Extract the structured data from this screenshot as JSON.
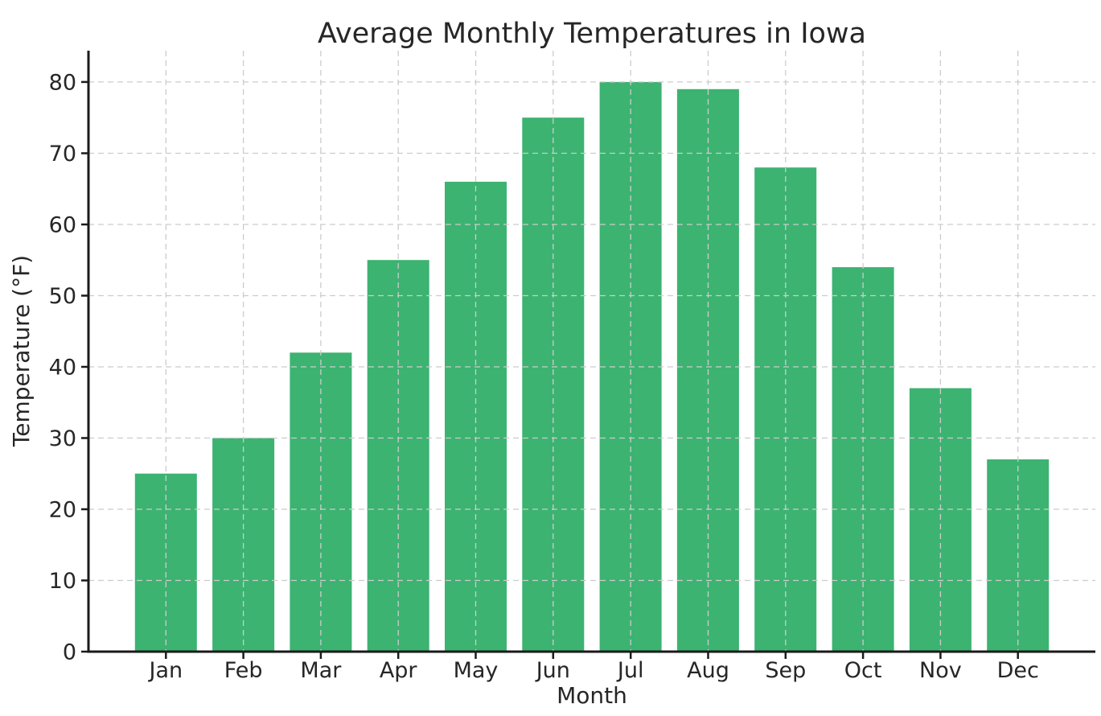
{
  "chart_data": {
    "type": "bar",
    "title": "Average Monthly Temperatures in Iowa",
    "xlabel": "Month",
    "ylabel": "Temperature (°F)",
    "categories": [
      "Jan",
      "Feb",
      "Mar",
      "Apr",
      "May",
      "Jun",
      "Jul",
      "Aug",
      "Sep",
      "Oct",
      "Nov",
      "Dec"
    ],
    "values": [
      25,
      30,
      42,
      55,
      66,
      75,
      80,
      79,
      68,
      54,
      37,
      27
    ],
    "yticks": [
      0,
      10,
      20,
      30,
      40,
      50,
      60,
      70,
      80
    ],
    "ylim": [
      0,
      84.4
    ],
    "grid": "on",
    "grid_style": "dashed",
    "grid_above_bars": true,
    "legend": "none",
    "colors": {
      "bar": "#3cb371",
      "grid": "#cccccc",
      "axis": "#1a1a1a",
      "text": "#262626",
      "background": "#ffffff"
    }
  }
}
